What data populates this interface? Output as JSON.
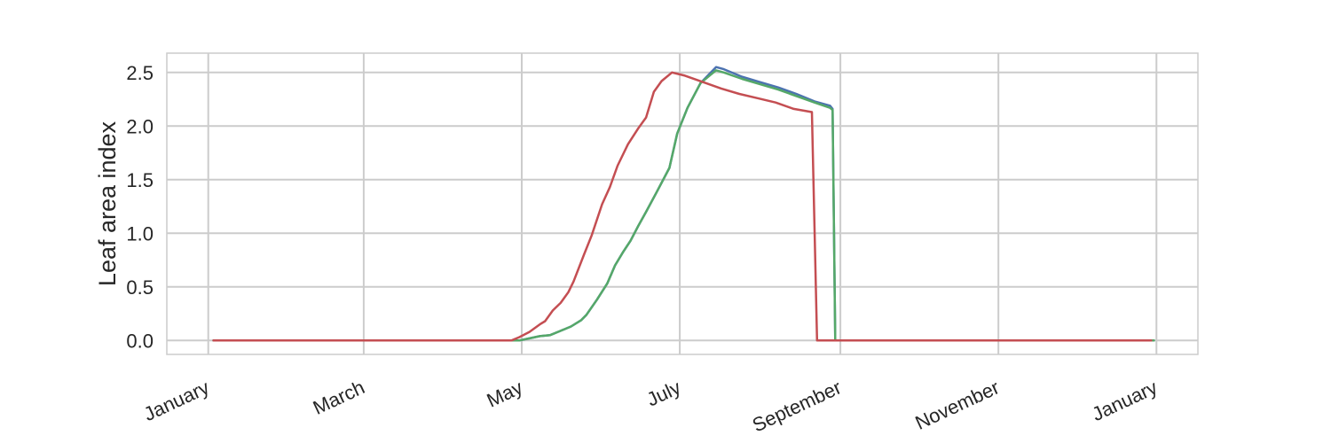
{
  "chart_data": {
    "type": "line",
    "title": "",
    "xlabel": "",
    "ylabel": "Leaf area index",
    "grid": true,
    "legend": "none",
    "x_ticks": [
      {
        "date": "2000-01-01",
        "label": "January"
      },
      {
        "date": "2000-03-01",
        "label": "March"
      },
      {
        "date": "2000-05-01",
        "label": "May"
      },
      {
        "date": "2000-07-01",
        "label": "July"
      },
      {
        "date": "2000-09-01",
        "label": "September"
      },
      {
        "date": "2000-11-01",
        "label": "November"
      },
      {
        "date": "2001-01-01",
        "label": "January"
      }
    ],
    "y_ticks": [
      {
        "value": 0.0,
        "label": "0.0"
      },
      {
        "value": 0.5,
        "label": "0.5"
      },
      {
        "value": 1.0,
        "label": "1.0"
      },
      {
        "value": 1.5,
        "label": "1.5"
      },
      {
        "value": 2.0,
        "label": "2.0"
      },
      {
        "value": 2.5,
        "label": "2.5"
      }
    ],
    "xlim": [
      "1999-12-16",
      "2001-01-17"
    ],
    "ylim": [
      -0.13,
      2.68
    ],
    "series": [
      {
        "color": "#4c72b0",
        "points": [
          {
            "x": "2000-01-03",
            "y": 0.0
          },
          {
            "x": "2000-04-30",
            "y": 0.0
          },
          {
            "x": "2000-05-04",
            "y": 0.02
          },
          {
            "x": "2000-05-08",
            "y": 0.04
          },
          {
            "x": "2000-05-12",
            "y": 0.05
          },
          {
            "x": "2000-05-16",
            "y": 0.09
          },
          {
            "x": "2000-05-20",
            "y": 0.13
          },
          {
            "x": "2000-05-24",
            "y": 0.19
          },
          {
            "x": "2000-05-26",
            "y": 0.24
          },
          {
            "x": "2000-05-30",
            "y": 0.38
          },
          {
            "x": "2000-06-03",
            "y": 0.53
          },
          {
            "x": "2000-06-06",
            "y": 0.7
          },
          {
            "x": "2000-06-09",
            "y": 0.82
          },
          {
            "x": "2000-06-12",
            "y": 0.93
          },
          {
            "x": "2000-06-15",
            "y": 1.07
          },
          {
            "x": "2000-06-18",
            "y": 1.2
          },
          {
            "x": "2000-06-22",
            "y": 1.38
          },
          {
            "x": "2000-06-27",
            "y": 1.61
          },
          {
            "x": "2000-06-30",
            "y": 1.93
          },
          {
            "x": "2000-07-04",
            "y": 2.17
          },
          {
            "x": "2000-07-09",
            "y": 2.4
          },
          {
            "x": "2000-07-13",
            "y": 2.5
          },
          {
            "x": "2000-07-15",
            "y": 2.55
          },
          {
            "x": "2000-07-18",
            "y": 2.53
          },
          {
            "x": "2000-07-25",
            "y": 2.46
          },
          {
            "x": "2000-08-01",
            "y": 2.41
          },
          {
            "x": "2000-08-08",
            "y": 2.36
          },
          {
            "x": "2000-08-15",
            "y": 2.3
          },
          {
            "x": "2000-08-22",
            "y": 2.23
          },
          {
            "x": "2000-08-28",
            "y": 2.19
          },
          {
            "x": "2000-08-29",
            "y": 2.16
          },
          {
            "x": "2000-08-30",
            "y": 0.0
          },
          {
            "x": "2000-12-31",
            "y": 0.0
          }
        ]
      },
      {
        "color": "#55a868",
        "points": [
          {
            "x": "2000-01-03",
            "y": 0.0
          },
          {
            "x": "2000-04-30",
            "y": 0.0
          },
          {
            "x": "2000-05-04",
            "y": 0.02
          },
          {
            "x": "2000-05-08",
            "y": 0.04
          },
          {
            "x": "2000-05-12",
            "y": 0.05
          },
          {
            "x": "2000-05-16",
            "y": 0.09
          },
          {
            "x": "2000-05-20",
            "y": 0.13
          },
          {
            "x": "2000-05-24",
            "y": 0.19
          },
          {
            "x": "2000-05-26",
            "y": 0.24
          },
          {
            "x": "2000-05-30",
            "y": 0.38
          },
          {
            "x": "2000-06-03",
            "y": 0.53
          },
          {
            "x": "2000-06-06",
            "y": 0.7
          },
          {
            "x": "2000-06-09",
            "y": 0.82
          },
          {
            "x": "2000-06-12",
            "y": 0.93
          },
          {
            "x": "2000-06-15",
            "y": 1.07
          },
          {
            "x": "2000-06-18",
            "y": 1.2
          },
          {
            "x": "2000-06-22",
            "y": 1.38
          },
          {
            "x": "2000-06-27",
            "y": 1.61
          },
          {
            "x": "2000-06-30",
            "y": 1.93
          },
          {
            "x": "2000-07-04",
            "y": 2.17
          },
          {
            "x": "2000-07-09",
            "y": 2.4
          },
          {
            "x": "2000-07-13",
            "y": 2.48
          },
          {
            "x": "2000-07-15",
            "y": 2.52
          },
          {
            "x": "2000-07-18",
            "y": 2.5
          },
          {
            "x": "2000-07-25",
            "y": 2.44
          },
          {
            "x": "2000-08-01",
            "y": 2.39
          },
          {
            "x": "2000-08-08",
            "y": 2.34
          },
          {
            "x": "2000-08-15",
            "y": 2.28
          },
          {
            "x": "2000-08-22",
            "y": 2.22
          },
          {
            "x": "2000-08-28",
            "y": 2.17
          },
          {
            "x": "2000-08-29",
            "y": 2.15
          },
          {
            "x": "2000-08-30",
            "y": 0.0
          },
          {
            "x": "2000-12-31",
            "y": 0.0
          }
        ]
      },
      {
        "color": "#c44e52",
        "points": [
          {
            "x": "2000-01-03",
            "y": 0.0
          },
          {
            "x": "2000-04-27",
            "y": 0.0
          },
          {
            "x": "2000-04-30",
            "y": 0.03
          },
          {
            "x": "2000-05-04",
            "y": 0.08
          },
          {
            "x": "2000-05-08",
            "y": 0.15
          },
          {
            "x": "2000-05-10",
            "y": 0.18
          },
          {
            "x": "2000-05-13",
            "y": 0.28
          },
          {
            "x": "2000-05-16",
            "y": 0.35
          },
          {
            "x": "2000-05-19",
            "y": 0.45
          },
          {
            "x": "2000-05-21",
            "y": 0.55
          },
          {
            "x": "2000-05-25",
            "y": 0.8
          },
          {
            "x": "2000-05-28",
            "y": 0.98
          },
          {
            "x": "2000-06-01",
            "y": 1.27
          },
          {
            "x": "2000-06-04",
            "y": 1.43
          },
          {
            "x": "2000-06-07",
            "y": 1.63
          },
          {
            "x": "2000-06-11",
            "y": 1.83
          },
          {
            "x": "2000-06-15",
            "y": 1.98
          },
          {
            "x": "2000-06-18",
            "y": 2.08
          },
          {
            "x": "2000-06-21",
            "y": 2.32
          },
          {
            "x": "2000-06-24",
            "y": 2.42
          },
          {
            "x": "2000-06-28",
            "y": 2.5
          },
          {
            "x": "2000-07-03",
            "y": 2.47
          },
          {
            "x": "2000-07-10",
            "y": 2.41
          },
          {
            "x": "2000-07-17",
            "y": 2.35
          },
          {
            "x": "2000-07-24",
            "y": 2.3
          },
          {
            "x": "2000-07-31",
            "y": 2.26
          },
          {
            "x": "2000-08-07",
            "y": 2.22
          },
          {
            "x": "2000-08-14",
            "y": 2.16
          },
          {
            "x": "2000-08-21",
            "y": 2.13
          },
          {
            "x": "2000-08-23",
            "y": 0.0
          },
          {
            "x": "2000-12-30",
            "y": 0.0
          }
        ]
      }
    ]
  }
}
